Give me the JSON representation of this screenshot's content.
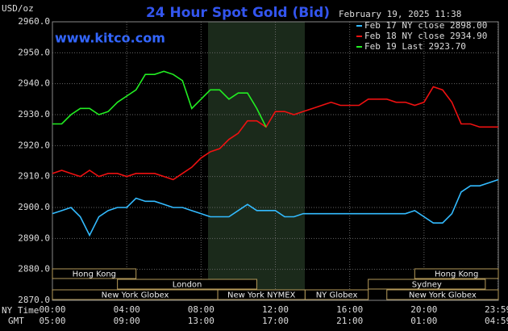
{
  "chart_data": {
    "type": "line",
    "title": "24 Hour Spot Gold (Bid)",
    "subtitle": "February 19, 2025 11:38",
    "watermark": "www.kitco.com",
    "y_axis_label": "USD/oz",
    "x_axis_label": "NY Time",
    "x2_axis_label": "GMT",
    "x": [
      0,
      0.5,
      1,
      1.5,
      2,
      2.5,
      3,
      3.5,
      4,
      4.5,
      5,
      5.5,
      6,
      6.5,
      7,
      7.5,
      8,
      8.5,
      9,
      9.5,
      10,
      10.5,
      11,
      11.5,
      12,
      12.5,
      13,
      13.5,
      14,
      14.5,
      15,
      15.5,
      16,
      16.5,
      17,
      17.5,
      18,
      18.5,
      19,
      19.5,
      20,
      20.5,
      21,
      21.5,
      22,
      22.5,
      23,
      23.5,
      24
    ],
    "series": [
      {
        "name": "Feb 17 NY close 2898.00",
        "color": "#33bbff",
        "values": [
          2898,
          2899,
          2900,
          2897,
          2891,
          2897,
          2899,
          2900,
          2900,
          2903,
          2902,
          2902,
          2901,
          2900,
          2900,
          2899,
          2898,
          2897,
          2897,
          2897,
          2899,
          2901,
          2899,
          2899,
          2899,
          2897,
          2897,
          2898,
          2898,
          2898,
          2898,
          2898,
          2898,
          2898,
          2898,
          2898,
          2898,
          2898,
          2898,
          2899,
          2897,
          2895,
          2895,
          2898,
          2905,
          2907,
          2907,
          2908,
          2909
        ]
      },
      {
        "name": "Feb 18 NY close 2934.90",
        "color": "#ee1111",
        "values": [
          2911,
          2912,
          2911,
          2910,
          2912,
          2910,
          2911,
          2911,
          2910,
          2911,
          2911,
          2911,
          2910,
          2909,
          2911,
          2913,
          2916,
          2918,
          2919,
          2922,
          2924,
          2928,
          2928,
          2926,
          2931,
          2931,
          2930,
          2931,
          2932,
          2933,
          2934,
          2933,
          2933,
          2933,
          2935,
          2935,
          2935,
          2934,
          2934,
          2933,
          2934,
          2939,
          2938,
          2934,
          2927,
          2927,
          2926,
          2926,
          2926
        ]
      },
      {
        "name": "Feb 19 Last 2923.70",
        "color": "#22ee22",
        "values": [
          2927,
          2927,
          2930,
          2932,
          2932,
          2930,
          2931,
          2934,
          2936,
          2938,
          2943,
          2943,
          2944,
          2943,
          2941,
          2932,
          2935,
          2938,
          2938,
          2935,
          2937,
          2937,
          2932,
          2926,
          null,
          null,
          null,
          null,
          null,
          null,
          null,
          null,
          null,
          null,
          null,
          null,
          null,
          null,
          null,
          null,
          null,
          null,
          null,
          null,
          null,
          null,
          null,
          null,
          null
        ]
      }
    ],
    "xlim": [
      0,
      24
    ],
    "ylim": [
      2870,
      2960
    ],
    "yticks": [
      {
        "value": 2870,
        "label": "2870.0"
      },
      {
        "value": 2880,
        "label": "2880.0"
      },
      {
        "value": 2890,
        "label": "2890.0"
      },
      {
        "value": 2900,
        "label": "2900.0"
      },
      {
        "value": 2910,
        "label": "2910.0"
      },
      {
        "value": 2920,
        "label": "2920.0"
      },
      {
        "value": 2930,
        "label": "2930.0"
      },
      {
        "value": 2940,
        "label": "2940.0"
      },
      {
        "value": 2950,
        "label": "2950.0"
      },
      {
        "value": 2960,
        "label": "2960.0"
      }
    ],
    "xticks": [
      {
        "value": 0,
        "label": "00:00"
      },
      {
        "value": 4,
        "label": "04:00"
      },
      {
        "value": 8,
        "label": "08:00"
      },
      {
        "value": 12,
        "label": "12:00"
      },
      {
        "value": 16,
        "label": "16:00"
      },
      {
        "value": 20,
        "label": "20:00"
      },
      {
        "value": 23.98,
        "label": "23:59"
      }
    ],
    "x2ticks": [
      {
        "value": 0,
        "label": "05:00"
      },
      {
        "value": 4,
        "label": "09:00"
      },
      {
        "value": 8,
        "label": "13:00"
      },
      {
        "value": 12,
        "label": "17:00"
      },
      {
        "value": 16,
        "label": "21:00"
      },
      {
        "value": 20,
        "label": "01:00"
      },
      {
        "value": 23.98,
        "label": "04:59"
      }
    ],
    "sessions": [
      {
        "label": "Hong Kong",
        "start": 0,
        "end": 4.5,
        "row": 1
      },
      {
        "label": "Hong Kong",
        "start": 19.5,
        "end": 24,
        "row": 1
      },
      {
        "label": "London",
        "start": 3.5,
        "end": 11,
        "row": 2
      },
      {
        "label": "Sydney",
        "start": 17,
        "end": 23.3,
        "row": 2
      },
      {
        "label": "New York Globex",
        "start": 0,
        "end": 8.9,
        "row": 3
      },
      {
        "label": "New York NYMEX",
        "start": 8.9,
        "end": 13.6,
        "row": 3
      },
      {
        "label": "NY Globex",
        "start": 13.6,
        "end": 17,
        "row": 3
      },
      {
        "label": "New York Globex",
        "start": 18,
        "end": 24,
        "row": 3
      }
    ],
    "grid": true
  }
}
